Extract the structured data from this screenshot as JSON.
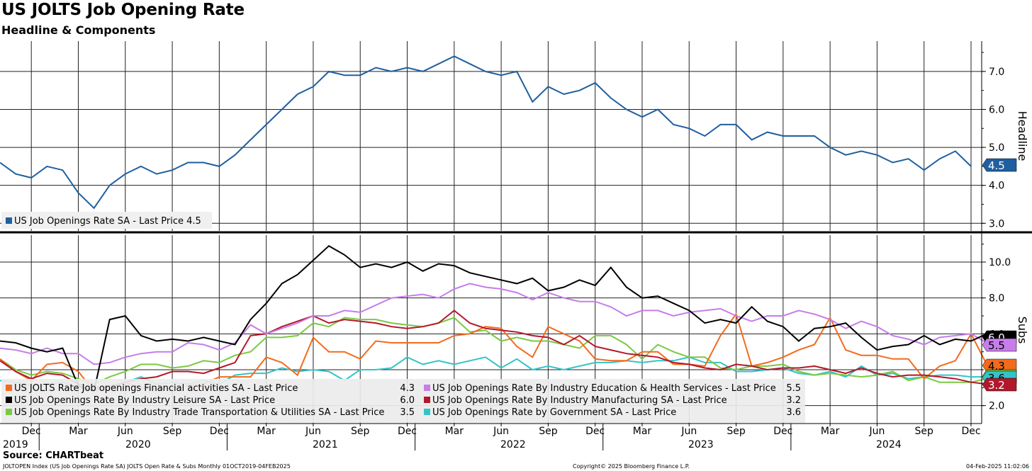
{
  "header": {
    "title": "US JOLTS Job Opening Rate",
    "subtitle": "Headline & Components"
  },
  "footer": {
    "source": "Source: CHARTbeat",
    "left": "JOLTOPEN Index (US Job Openings Rate SA) JOLTS Open Rate & Subs  Monthly 01OCT2019-04FEB2025",
    "middle": "Copyright© 2025 Bloomberg Finance L.P.",
    "right": "04-Feb-2025 11:02:06"
  },
  "colors": {
    "headline": "#1f5fa0",
    "financial": "#f26b1d",
    "leisure": "#000000",
    "trade": "#7ac943",
    "education": "#c77dea",
    "manufacturing": "#b2182b",
    "government": "#33c4c9"
  },
  "chart_data": [
    {
      "type": "line",
      "panel": "top",
      "ylabel": "Headline",
      "ylim": [
        2.8,
        7.8
      ],
      "yticks": [
        "7.0",
        "6.0",
        "5.0",
        "4.0",
        "3.0"
      ],
      "x_start": "2019-10",
      "x_end": "2024-12",
      "grid": true,
      "legend_position": "bottom-left",
      "series": [
        {
          "name": "US Job Openings Rate SA - Last Price",
          "last_value": "4.5",
          "color_key": "headline",
          "values": [
            4.6,
            4.3,
            4.2,
            4.5,
            4.4,
            3.8,
            3.4,
            4.0,
            4.3,
            4.5,
            4.3,
            4.4,
            4.6,
            4.6,
            4.5,
            4.8,
            5.2,
            5.6,
            6.0,
            6.4,
            6.6,
            7.0,
            6.9,
            6.9,
            7.1,
            7.0,
            7.1,
            7.0,
            7.2,
            7.4,
            7.2,
            7.0,
            6.9,
            7.0,
            6.2,
            6.6,
            6.4,
            6.5,
            6.7,
            6.3,
            6.0,
            5.8,
            6.0,
            5.6,
            5.5,
            5.3,
            5.6,
            5.6,
            5.2,
            5.4,
            5.3,
            5.3,
            5.3,
            5.0,
            4.8,
            4.9,
            4.8,
            4.6,
            4.7,
            4.4,
            4.7,
            4.9,
            4.5
          ]
        }
      ]
    },
    {
      "type": "line",
      "panel": "bottom",
      "ylabel": "Subs",
      "ylim": [
        1.0,
        11.5
      ],
      "yticks": [
        "10.0",
        "8.0",
        "6.0",
        "2.0"
      ],
      "x_start": "2019-10",
      "x_end": "2024-12",
      "grid": true,
      "legend_position": "bottom-left",
      "x_tick_months": [
        "Dec",
        "Mar",
        "Jun",
        "Sep",
        "Dec",
        "Mar",
        "Jun",
        "Sep",
        "Dec",
        "Mar",
        "Jun",
        "Sep",
        "Dec",
        "Mar",
        "Jun",
        "Sep",
        "Dec",
        "Mar",
        "Jun",
        "Sep",
        "Dec"
      ],
      "x_tick_years": [
        "2019",
        "2020",
        "2021",
        "2022",
        "2023",
        "2024"
      ],
      "series": [
        {
          "name": "US JOLTS Rate Job openings Financial activities SA - Last Price",
          "last_value": "4.3",
          "color_key": "financial",
          "values": [
            4.6,
            3.9,
            3.4,
            4.3,
            4.4,
            3.9,
            2.8,
            3.1,
            3.3,
            3.0,
            2.9,
            3.0,
            3.1,
            3.2,
            3.6,
            3.6,
            3.6,
            4.7,
            4.4,
            3.7,
            5.8,
            5.0,
            5.0,
            4.6,
            5.6,
            5.5,
            5.5,
            5.5,
            5.5,
            5.9,
            6.0,
            6.4,
            6.3,
            5.3,
            4.7,
            6.4,
            6.0,
            5.6,
            4.6,
            4.5,
            4.5,
            5.0,
            5.0,
            4.3,
            4.3,
            4.2,
            5.9,
            7.1,
            4.2,
            4.4,
            4.7,
            5.1,
            5.4,
            6.9,
            5.1,
            4.8,
            4.8,
            4.6,
            4.6,
            3.5,
            4.2,
            4.5,
            6.0,
            4.3
          ]
        },
        {
          "name": "US Job Openings Rate By Industry Leisure SA - Last Price",
          "last_value": "6.0",
          "color_key": "leisure",
          "values": [
            5.6,
            5.5,
            5.2,
            5.0,
            5.2,
            3.1,
            2.8,
            6.8,
            7.0,
            5.9,
            5.6,
            5.7,
            5.6,
            5.8,
            5.6,
            5.4,
            6.8,
            7.7,
            8.8,
            9.3,
            10.1,
            10.9,
            10.4,
            9.7,
            9.9,
            9.7,
            10.0,
            9.5,
            9.9,
            9.8,
            9.4,
            9.2,
            9.0,
            8.8,
            9.1,
            8.4,
            8.6,
            9.0,
            8.7,
            9.7,
            8.6,
            8.0,
            8.1,
            7.7,
            7.3,
            6.6,
            6.8,
            6.6,
            7.5,
            6.7,
            6.4,
            5.6,
            6.3,
            6.4,
            6.6,
            5.8,
            5.1,
            5.3,
            5.4,
            5.9,
            5.4,
            5.7,
            5.6,
            6.0
          ]
        },
        {
          "name": "US Job Openings Rate By Industry Trade Transportation & Utilities SA - Last Price",
          "last_value": "3.5",
          "color_key": "trade",
          "values": [
            4.6,
            4.0,
            3.7,
            3.9,
            3.8,
            3.5,
            3.2,
            3.6,
            3.9,
            4.3,
            4.3,
            4.1,
            4.2,
            4.5,
            4.4,
            4.8,
            5.0,
            5.8,
            5.8,
            5.9,
            6.6,
            6.4,
            6.9,
            6.8,
            6.8,
            6.6,
            6.5,
            6.4,
            6.6,
            6.9,
            6.1,
            6.2,
            5.6,
            5.8,
            5.6,
            5.6,
            5.4,
            5.2,
            5.9,
            5.9,
            5.4,
            4.6,
            5.4,
            5.0,
            4.7,
            4.7,
            4.1,
            4.0,
            4.2,
            4.2,
            4.3,
            3.9,
            3.7,
            3.8,
            3.7,
            3.6,
            3.7,
            3.9,
            3.4,
            3.6,
            3.3,
            3.3,
            3.3,
            3.5
          ]
        },
        {
          "name": "US Job Openings Rate By Industry Education & Health Services - Last Price",
          "last_value": "5.5",
          "color_key": "education",
          "values": [
            5.2,
            5.1,
            4.9,
            5.2,
            4.9,
            4.9,
            4.3,
            4.4,
            4.7,
            4.9,
            5.0,
            5.0,
            5.5,
            5.4,
            5.1,
            5.5,
            6.5,
            6.0,
            6.3,
            6.6,
            7.0,
            7.0,
            7.3,
            7.2,
            7.6,
            8.0,
            8.1,
            8.2,
            8.0,
            8.5,
            8.8,
            8.6,
            8.5,
            8.3,
            7.9,
            8.3,
            8.0,
            7.8,
            7.8,
            7.5,
            7.0,
            7.3,
            7.3,
            7.0,
            7.2,
            7.3,
            7.4,
            7.0,
            6.7,
            7.0,
            7.0,
            7.3,
            7.1,
            6.8,
            6.3,
            6.7,
            6.4,
            5.9,
            5.7,
            5.4,
            5.8,
            5.9,
            6.0,
            5.5
          ]
        },
        {
          "name": "US Job Openings Rate By Industry Manufacturing SA - Last Price",
          "last_value": "3.2",
          "color_key": "manufacturing",
          "values": [
            4.5,
            3.9,
            3.5,
            3.8,
            3.7,
            3.2,
            3.0,
            3.0,
            3.3,
            3.5,
            3.6,
            3.9,
            3.9,
            3.8,
            4.1,
            4.4,
            5.9,
            6.0,
            6.4,
            6.7,
            7.0,
            6.6,
            6.8,
            6.7,
            6.6,
            6.4,
            6.3,
            6.4,
            6.6,
            7.3,
            6.6,
            6.3,
            6.2,
            6.1,
            5.9,
            5.8,
            5.4,
            5.9,
            5.3,
            5.1,
            4.9,
            4.8,
            4.7,
            4.4,
            4.3,
            4.1,
            4.0,
            4.3,
            4.2,
            4.0,
            4.1,
            4.1,
            4.2,
            4.0,
            3.8,
            4.1,
            3.8,
            3.6,
            3.7,
            3.7,
            3.6,
            3.5,
            3.3,
            3.2
          ]
        },
        {
          "name": "US Job Openings Rate by Government SA - Last Price",
          "last_value": "3.6",
          "color_key": "government",
          "values": [
            3.4,
            3.3,
            3.1,
            3.2,
            3.3,
            3.0,
            2.9,
            3.1,
            3.3,
            3.6,
            3.2,
            3.3,
            3.2,
            3.4,
            3.2,
            3.7,
            3.8,
            3.8,
            4.1,
            3.9,
            4.0,
            3.9,
            3.4,
            4.0,
            4.0,
            4.1,
            4.7,
            4.3,
            4.5,
            4.3,
            4.5,
            4.7,
            4.1,
            4.6,
            4.0,
            4.2,
            4.0,
            4.2,
            4.4,
            4.4,
            4.5,
            4.4,
            4.5,
            4.5,
            4.7,
            4.4,
            4.4,
            3.9,
            3.9,
            4.0,
            4.1,
            3.8,
            3.7,
            3.9,
            3.6,
            4.2,
            3.7,
            3.8,
            3.5,
            3.6,
            3.7,
            3.7,
            3.6,
            3.6
          ]
        }
      ]
    }
  ]
}
